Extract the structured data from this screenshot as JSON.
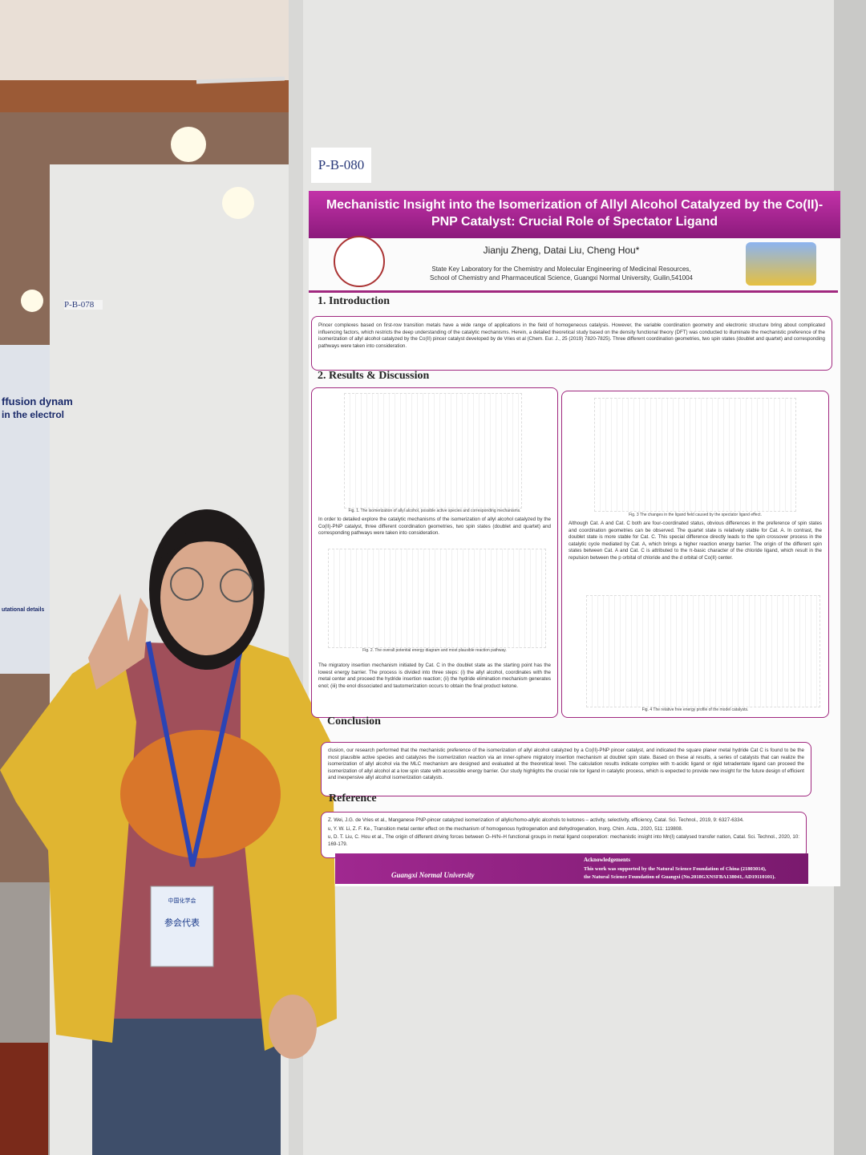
{
  "scene": {
    "board_id": "P-B-080",
    "neighbor_board_id": "P-B-078",
    "neighbor_poster": {
      "title_line1": "ffusion dynam",
      "title_line2": "in the electrol",
      "section": "utational details"
    },
    "badge": {
      "org": "中国化学会",
      "role": "参会代表"
    }
  },
  "poster": {
    "title": "Mechanistic Insight into the Isomerization of Allyl Alcohol Catalyzed by the Co(II)-PNP Catalyst: Crucial Role of Spectator Ligand",
    "authors": "Jianju Zheng, Datai Liu, Cheng Hou*",
    "affiliation": [
      "State Key Laboratory for the Chemistry and Molecular Engineering of Medicinal Resources,",
      "School of Chemistry and Pharmaceutical Science, Guangxi Normal University, Guilin,541004"
    ],
    "introduction": {
      "heading": "1. Introduction",
      "text": "Pincer complexes based on first-row transition metals have a wide range of applications in the field of homogeneous catalysis. However, the variable coordination geometry and electronic structure bring about complicated influencing factors, which restricts the deep understanding of the catalytic mechanisms. Herein, a detailed theoretical study based on the density functional theory (DFT) was conducted to illuminate the mechanistic preference of the isomerization of allyl alcohol catalyzed by the Co(II) pincer catalyst developed by de Vries et al (Chem. Eur. J., 25 (2019) 7820-7825). Three different coordination geometries, two spin states (doublet and quartet) and corresponding pathways were taken into consideration."
    },
    "results": {
      "heading": "2. Results & Discussion",
      "fig1_caption": "Fig. 1. The isomerization of allyl alcohol, possible active species and corresponding mechanisms.",
      "left_text1": "In order to detailed explore the catalytic mechanisms of the isomerization of allyl alcohol catalyzed by the Co(II)-PNP catalyst, three different coordination geometries, two spin states (doublet and quartet) and corresponding pathways were taken into consideration.",
      "fig2_caption": "Fig. 2. The overall potential energy diagram and most plausible reaction pathway.",
      "left_text2": "The migratory insertion mechanism initiated by Cat. C in the doublet state as the starting point has the lowest energy barrier. The process is divided into three steps: (i) the allyl alcohol, coordinates with the metal center and proceed the hydride insertion reaction; (ii) the hydride elimination mechanism generates enol; (iii) the enol dissociated and tautomerization occurs to obtain the final product ketone.",
      "fig3_caption": "Fig. 3 The changes in the ligand field caused by the spectator ligand effect.",
      "right_text": "Although Cat. A and Cat. C both are four-coordinated status, obvious differences in the preference of spin states and coordination geometries can be observed. The quartet state is relatively stable for Cat. A. In contrast, the doublet state is more stable for Cat. C. This special difference directly leads to the spin crossover process in the catalytic cycle mediated by Cat. A, which brings a higher reaction energy barrier. The origin of the different spin states between Cat. A and Cat. C is attributed to the π-basic character of the chloride ligand, which result in the repulsion between the p orbital of chloride and the d orbital of Co(II) center.",
      "fig4_caption": "Fig. 4 The relative free energy profile of the model catalysts."
    },
    "conclusion": {
      "heading": "Conclusion",
      "text": "clusion, our research performed that the mechanistic preference of the isomerization of allyl alcohol catalyzed by a Co(II)-PNP pincer catalyst, and indicated the square planer metal hydride Cat C is found to be the most plausible active species and catalyzes the isomerization reaction via an inner-sphere migratory insertion mechanism at doublet spin state. Based on these al results, a series of catalysts that can realize the isomerization of allyl alcohol via the MLC mechanism are designed and evaluated at the theoretical level. The calculation results indicate complex with π-acidic ligand or rigid tetradentate ligand can proceed the isomerization of allyl alcohol at a low spin state with accessible energy barrier. Our study highlights the crucial role tor ligand in catalytic process, which is expected to provide new insight for the future design of efficient and inexpensive allyl alcohol isomerization catalysts."
    },
    "reference": {
      "heading": "Reference",
      "items": [
        "Z. Wei, J.G. de Vries et al., Manganese PNP-pincer catalyzed isomerization of allylic/homo-allylic alcohols to ketones – activity, selectivity, efficiency, Catal. Sci. Technol., 2019, 9: 6327-6334.",
        "u, Y. W. Li, Z. F. Ke., Transition metal center effect on the mechanism of homogenous hydrogenation and dehydrogenation, Inorg. Chim. Acta., 2020, 511: 119808.",
        "u, D. T. Liu, C. Hou et al., The origin of different driving forces between O–H/N–H functional groups in metal ligand cooperation: mechanistic insight into Mn(I) catalysed transfer nation, Catal. Sci. Technol., 2020, 10: 169-179."
      ]
    },
    "footer": {
      "university": "Guangxi Normal University",
      "ack_heading": "Acknowledgements",
      "ack_lines": [
        "This work was supported by the Natural Science Foundation of China (21803014),",
        "the Natural Science Foundation of Guangxi (No.2018GXNSFBA138041, AD19110101)."
      ]
    }
  }
}
